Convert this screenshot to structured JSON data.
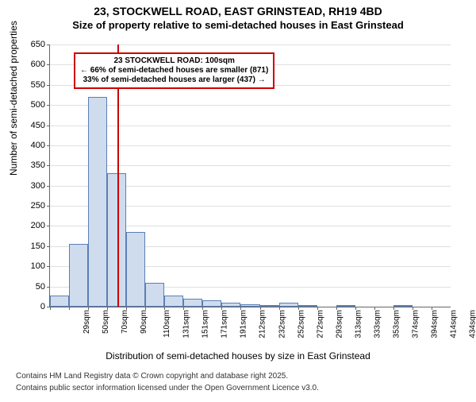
{
  "title_main": "23, STOCKWELL ROAD, EAST GRINSTEAD, RH19 4BD",
  "title_sub": "Size of property relative to semi-detached houses in East Grinstead",
  "ylabel": "Number of semi-detached properties",
  "xlabel": "Distribution of semi-detached houses by size in East Grinstead",
  "footer1": "Contains HM Land Registry data © Crown copyright and database right 2025.",
  "footer2": "Contains public sector information licensed under the Open Government Licence v3.0.",
  "chart": {
    "type": "histogram",
    "ylim": [
      0,
      650
    ],
    "ytick_step": 50,
    "x_categories": [
      "29sqm",
      "50sqm",
      "70sqm",
      "90sqm",
      "110sqm",
      "131sqm",
      "151sqm",
      "171sqm",
      "191sqm",
      "212sqm",
      "232sqm",
      "252sqm",
      "272sqm",
      "293sqm",
      "313sqm",
      "333sqm",
      "353sqm",
      "374sqm",
      "394sqm",
      "414sqm",
      "434sqm"
    ],
    "values": [
      28,
      155,
      520,
      330,
      185,
      60,
      28,
      20,
      16,
      10,
      6,
      4,
      10,
      4,
      0,
      4,
      0,
      0,
      4,
      0,
      0
    ],
    "bar_fill": "#cfdcee",
    "bar_border": "#5b7fb5",
    "grid_color": "#e0e0e0",
    "background_color": "#ffffff",
    "axis_color": "#666666",
    "marker": {
      "x_index": 3.55,
      "color": "#cc0000",
      "line1": "23 STOCKWELL ROAD: 100sqm",
      "line2": "← 66% of semi-detached houses are smaller (871)",
      "line3": "33% of semi-detached houses are larger (437) →"
    },
    "title_fontsize": 14,
    "label_fontsize": 12,
    "tick_fontsize": 11
  }
}
